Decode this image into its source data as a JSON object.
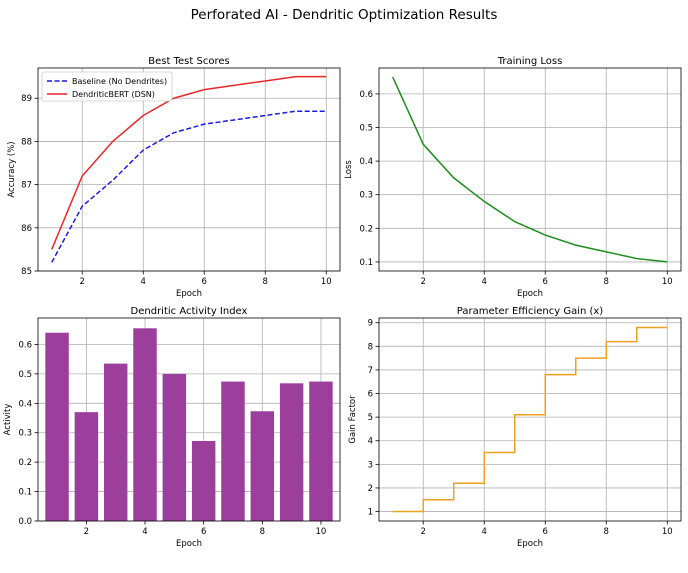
{
  "title": "Perforated AI - Dendritic Optimization Results",
  "chart_data": [
    {
      "id": "scores",
      "type": "line",
      "title": "Best Test Scores",
      "xlabel": "Epoch",
      "ylabel": "Accuracy (%)",
      "x": [
        1,
        2,
        3,
        4,
        5,
        6,
        7,
        8,
        9,
        10
      ],
      "xlim": [
        0.55,
        10.45
      ],
      "ylim": [
        85.0,
        89.7
      ],
      "xticks": [
        2,
        4,
        6,
        8,
        10
      ],
      "yticks": [
        85,
        86,
        87,
        88,
        89
      ],
      "grid": true,
      "legend": "top-left",
      "series": [
        {
          "name": "Baseline (No Dendrites)",
          "color": "#1a1ae6",
          "dash": "dashed",
          "values": [
            85.2,
            86.5,
            87.1,
            87.8,
            88.2,
            88.4,
            88.5,
            88.6,
            88.7,
            88.7
          ]
        },
        {
          "name": "DendritiсBERT (DSN)",
          "color": "#e62828",
          "dash": "solid",
          "values": [
            85.5,
            87.2,
            88.0,
            88.6,
            89.0,
            89.2,
            89.3,
            89.4,
            89.5,
            89.5
          ]
        }
      ]
    },
    {
      "id": "loss",
      "type": "line",
      "title": "Training Loss",
      "xlabel": "Epoch",
      "ylabel": "Loss",
      "x": [
        1,
        2,
        3,
        4,
        5,
        6,
        7,
        8,
        9,
        10
      ],
      "xlim": [
        0.55,
        10.45
      ],
      "ylim": [
        0.073,
        0.677
      ],
      "xticks": [
        2,
        4,
        6,
        8,
        10
      ],
      "yticks": [
        0.1,
        0.2,
        0.3,
        0.4,
        0.5,
        0.6
      ],
      "grid": true,
      "series": [
        {
          "color": "#1f8c1f",
          "dash": "solid",
          "values": [
            0.65,
            0.45,
            0.35,
            0.28,
            0.22,
            0.18,
            0.15,
            0.13,
            0.11,
            0.1
          ]
        }
      ]
    },
    {
      "id": "activity",
      "type": "bar",
      "title": "Dendritic Activity Index",
      "xlabel": "Epoch",
      "ylabel": "Activity",
      "x": [
        1,
        2,
        3,
        4,
        5,
        6,
        7,
        8,
        9,
        10
      ],
      "xlim": [
        0.35,
        10.65
      ],
      "ylim": [
        0.0,
        0.69
      ],
      "xticks": [
        2,
        4,
        6,
        8,
        10
      ],
      "yticks": [
        0.0,
        0.1,
        0.2,
        0.3,
        0.4,
        0.5,
        0.6
      ],
      "grid": true,
      "color": "#9c3f9c",
      "values": [
        0.64,
        0.37,
        0.535,
        0.655,
        0.5,
        0.272,
        0.474,
        0.373,
        0.468,
        0.474
      ]
    },
    {
      "id": "gain",
      "type": "line",
      "step": "post",
      "title": "Parameter Efficiency Gain (x)",
      "xlabel": "Epoch",
      "ylabel": "Gain Factor",
      "x": [
        1,
        2,
        3,
        4,
        5,
        6,
        7,
        8,
        9,
        10
      ],
      "xlim": [
        0.55,
        10.45
      ],
      "ylim": [
        0.6,
        9.2
      ],
      "xticks": [
        2,
        4,
        6,
        8,
        10
      ],
      "yticks": [
        1,
        2,
        3,
        4,
        5,
        6,
        7,
        8,
        9
      ],
      "grid": true,
      "series": [
        {
          "color": "#f0a020",
          "dash": "solid",
          "values": [
            1.0,
            1.5,
            2.2,
            3.5,
            5.1,
            6.8,
            7.5,
            8.2,
            8.8,
            8.8
          ]
        }
      ]
    }
  ]
}
